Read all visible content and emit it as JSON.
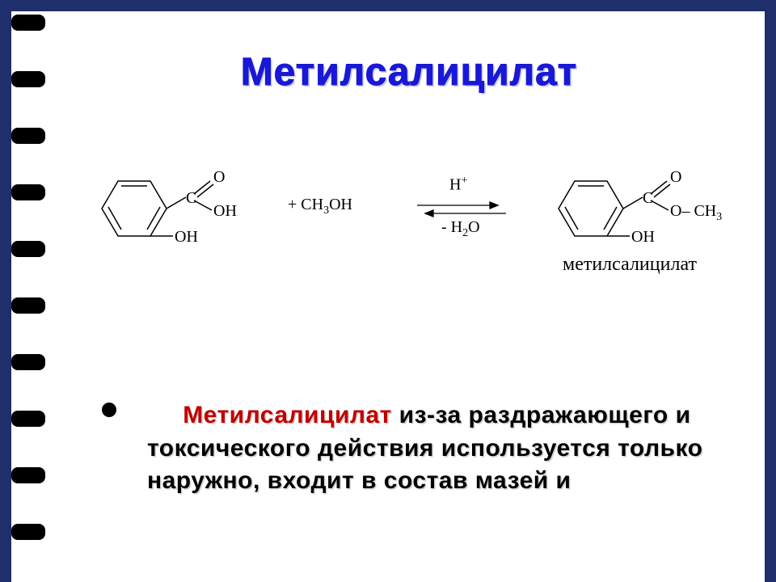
{
  "title": "Метилсалицилат",
  "reaction": {
    "reagent_text": "+  CH<sub>3</sub>OH",
    "arrow_top": "H<sup>+</sup>",
    "arrow_bottom": "- H<sub>2</sub>O",
    "left_labels": {
      "C": "C",
      "dblO": "O",
      "OH1": "OH",
      "OH2": "OH"
    },
    "right_labels": {
      "C": "C",
      "dblO": "O",
      "OCH3": "O– CH<sub>3</sub>",
      "OH": "OH"
    },
    "product_name": "метилсалицилат"
  },
  "body": {
    "highlight": "Метилсалицилат",
    "rest": " из-за раздражающего и токсического действия используется только наружно, входит в состав мазей и"
  },
  "style": {
    "slide_bg": "#1f2f6b",
    "inner_bg": "#ffffff",
    "title_color": "#1818d6",
    "highlight_color": "#c00000",
    "text_color": "#000000",
    "title_fontsize": 48,
    "body_fontsize": 30,
    "chem_fontsize": 20,
    "product_fontsize": 24,
    "notch_count": 10
  }
}
